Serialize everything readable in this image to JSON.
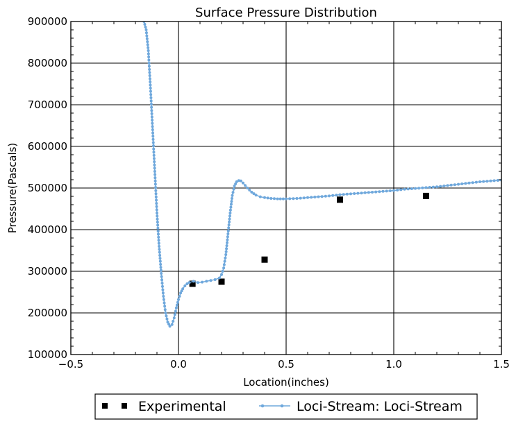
{
  "chart_data": {
    "type": "line",
    "title": "Surface Pressure Distribution",
    "xlabel": "Location(inches)",
    "ylabel": "Pressure(Pascals)",
    "xlim": [
      -0.5,
      1.5
    ],
    "ylim": [
      100000,
      900000
    ],
    "xticks": [
      -0.5,
      0.0,
      0.5,
      1.0,
      1.5
    ],
    "xtick_labels": [
      "−0.5",
      "0.0",
      "0.5",
      "1.0",
      "1.5"
    ],
    "yticks": [
      100000,
      200000,
      300000,
      400000,
      500000,
      600000,
      700000,
      800000,
      900000
    ],
    "ytick_labels": [
      "100000",
      "200000",
      "300000",
      "400000",
      "500000",
      "600000",
      "700000",
      "800000",
      "900000"
    ],
    "grid": true,
    "legend_position": "below",
    "series": [
      {
        "name": "Experimental",
        "kind": "scatter",
        "marker": "square",
        "color": "#000000",
        "x": [
          0.065,
          0.2,
          0.4,
          0.75,
          1.15
        ],
        "y": [
          270000,
          275000,
          328000,
          472000,
          481000
        ]
      },
      {
        "name": "Loci-Stream: Loci-Stream",
        "kind": "line",
        "marker": "dot",
        "color": "#6fa8dc",
        "x": [
          -0.16,
          -0.15,
          -0.14,
          -0.13,
          -0.12,
          -0.11,
          -0.1,
          -0.09,
          -0.08,
          -0.07,
          -0.06,
          -0.05,
          -0.04,
          -0.03,
          -0.02,
          -0.01,
          0.0,
          0.01,
          0.02,
          0.03,
          0.04,
          0.05,
          0.07,
          0.09,
          0.11,
          0.13,
          0.15,
          0.17,
          0.19,
          0.2,
          0.21,
          0.22,
          0.23,
          0.24,
          0.25,
          0.26,
          0.27,
          0.28,
          0.29,
          0.3,
          0.32,
          0.34,
          0.36,
          0.38,
          0.4,
          0.43,
          0.46,
          0.5,
          0.55,
          0.6,
          0.65,
          0.7,
          0.75,
          0.8,
          0.85,
          0.9,
          0.95,
          1.0,
          1.05,
          1.1,
          1.15,
          1.2,
          1.25,
          1.3,
          1.35,
          1.4,
          1.45,
          1.5
        ],
        "y": [
          900000,
          880000,
          830000,
          740000,
          640000,
          540000,
          440000,
          360000,
          295000,
          240000,
          200000,
          178000,
          168000,
          172000,
          188000,
          212000,
          232000,
          248000,
          258000,
          265000,
          270000,
          273000,
          276000,
          273000,
          274000,
          276000,
          278000,
          280000,
          284000,
          292000,
          308000,
          340000,
          390000,
          440000,
          482000,
          505000,
          515000,
          518000,
          517000,
          512000,
          500000,
          490000,
          483000,
          479000,
          477000,
          475000,
          474000,
          474000,
          475000,
          477000,
          479000,
          481000,
          484000,
          486000,
          488000,
          490000,
          492000,
          494000,
          497000,
          499000,
          501000,
          503000,
          506000,
          509000,
          512000,
          515000,
          517000,
          519000
        ]
      }
    ]
  }
}
